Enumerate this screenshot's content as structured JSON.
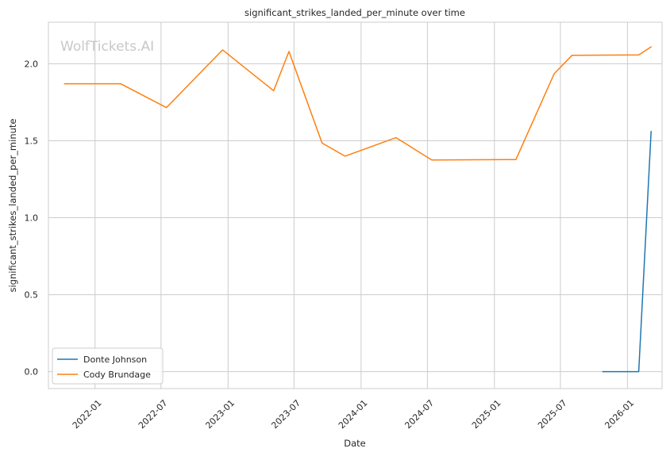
{
  "chart_data": {
    "type": "line",
    "title": "significant_strikes_landed_per_minute over time",
    "xlabel": "Date",
    "ylabel": "significant_strikes_landed_per_minute",
    "watermark": "WolfTickets.AI",
    "grid": true,
    "legend_position": "lower-left",
    "xlim": [
      "2021-08-26",
      "2026-04-06"
    ],
    "ylim": [
      -0.11,
      2.27
    ],
    "x_ticks": [
      "2022-01-01",
      "2022-07-01",
      "2023-01-01",
      "2023-07-01",
      "2024-01-01",
      "2024-07-01",
      "2025-01-01",
      "2025-07-01",
      "2026-01-01"
    ],
    "x_tick_labels": [
      "2022-01",
      "2022-07",
      "2023-01",
      "2023-07",
      "2024-01",
      "2024-07",
      "2025-01",
      "2025-07",
      "2026-01"
    ],
    "y_ticks": [
      0.0,
      0.5,
      1.0,
      1.5,
      2.0
    ],
    "y_tick_labels": [
      "0.0",
      "0.5",
      "1.0",
      "1.5",
      "2.0"
    ],
    "series": [
      {
        "name": "Donte Johnson",
        "color": "#1f77b4",
        "points": [
          {
            "x": "2025-10-25",
            "y": 0.0
          },
          {
            "x": "2026-02-01",
            "y": 0.0
          },
          {
            "x": "2026-03-07",
            "y": 1.56
          }
        ]
      },
      {
        "name": "Cody Brundage",
        "color": "#ff7f0e",
        "points": [
          {
            "x": "2021-10-09",
            "y": 1.87
          },
          {
            "x": "2022-03-12",
            "y": 1.87
          },
          {
            "x": "2022-07-16",
            "y": 1.715
          },
          {
            "x": "2022-12-17",
            "y": 2.09
          },
          {
            "x": "2023-05-06",
            "y": 1.825
          },
          {
            "x": "2023-06-17",
            "y": 2.08
          },
          {
            "x": "2023-09-16",
            "y": 1.485
          },
          {
            "x": "2023-11-18",
            "y": 1.4
          },
          {
            "x": "2024-04-06",
            "y": 1.52
          },
          {
            "x": "2024-07-13",
            "y": 1.375
          },
          {
            "x": "2025-03-01",
            "y": 1.378
          },
          {
            "x": "2025-06-14",
            "y": 1.935
          },
          {
            "x": "2025-08-02",
            "y": 2.055
          },
          {
            "x": "2026-02-01",
            "y": 2.058
          },
          {
            "x": "2026-03-07",
            "y": 2.11
          }
        ]
      }
    ]
  }
}
